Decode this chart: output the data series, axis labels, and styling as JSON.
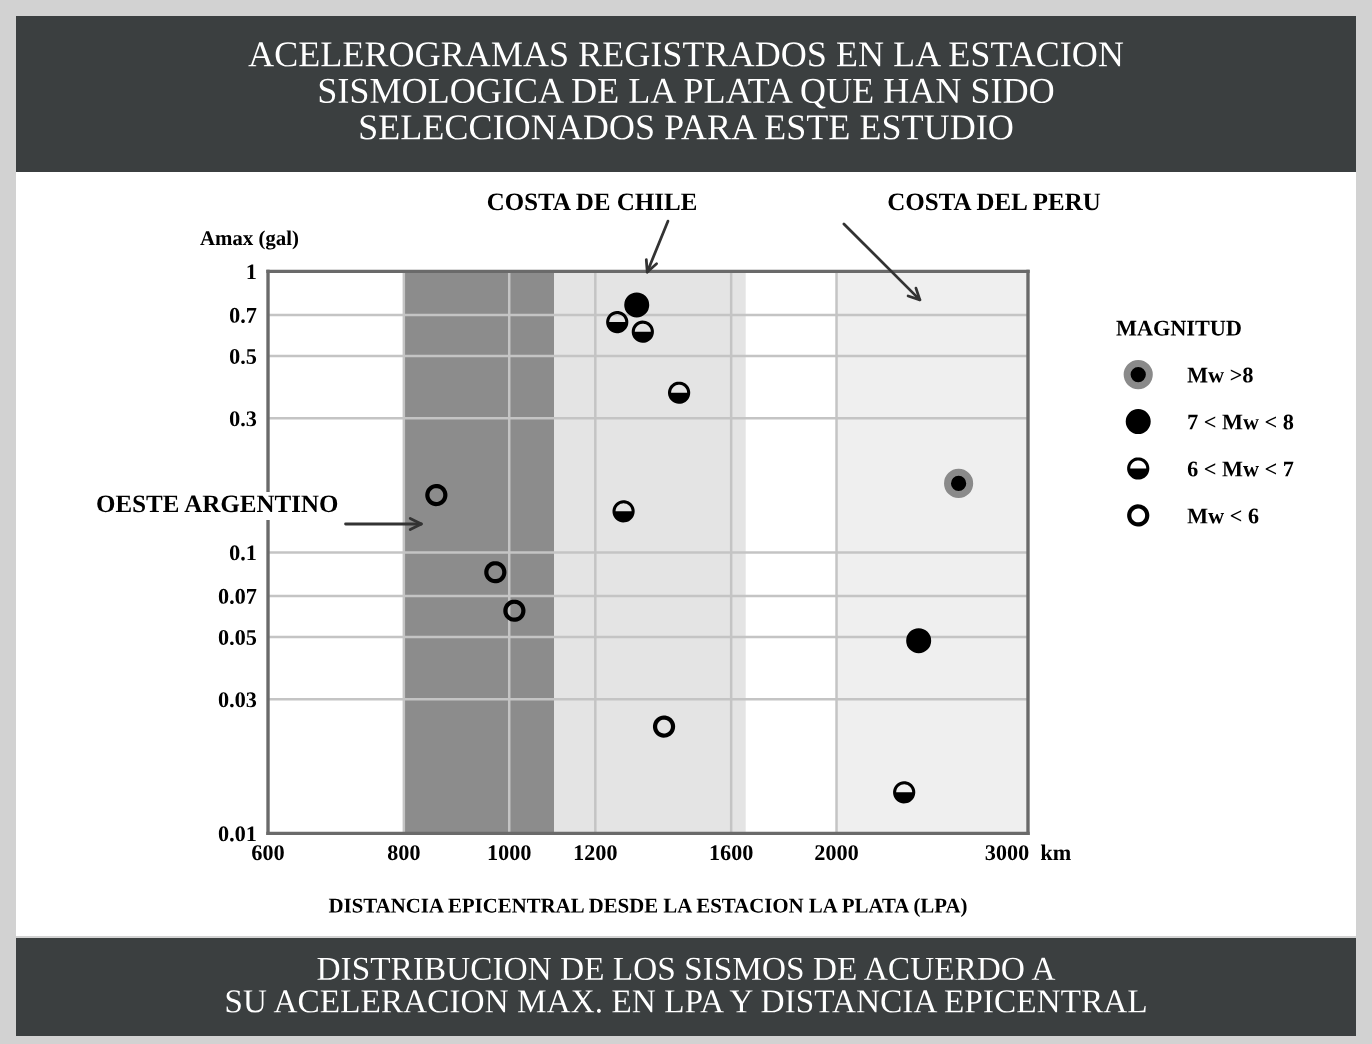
{
  "chart_data": {
    "type": "scatter",
    "title": "ACELEROGRAMAS REGISTRADOS EN LA ESTACION\nSISMOLOGICA DE LA PLATA QUE HAN SIDO\nSELECCIONADOS PARA ESTE ESTUDIO",
    "xlabel": "DISTANCIA EPICENTRAL DESDE LA ESTACION LA PLATA (LPA)",
    "ylabel": "Amax (gal)",
    "legend_title": "MAGNITUD",
    "log": "xy",
    "xlim": [
      600,
      3000
    ],
    "xticks": [
      600,
      800,
      1000,
      1200,
      1600,
      2000,
      {
        "value": 3000,
        "label": "3000  km"
      }
    ],
    "ylim": [
      0.01,
      1
    ],
    "yticks": [
      0.01,
      0.03,
      0.05,
      0.07,
      0.1,
      0.3,
      0.5,
      0.7,
      1
    ],
    "grid": true,
    "legend": "right",
    "marker": "circle",
    "series": [
      {
        "name": "Mw >8",
        "color": "#000000",
        "x": [
          2590
        ],
        "values": [
          0.176
        ]
      },
      {
        "name": "7 < Mw < 8",
        "color": "#000000",
        "x": [
          1310,
          2380
        ],
        "values": [
          0.76,
          0.0485
        ]
      },
      {
        "name": "6 < Mw < 7",
        "color": "#000000",
        "x": [
          1257,
          1327,
          1433,
          1274,
          2308
        ],
        "values": [
          0.66,
          0.61,
          0.37,
          0.14,
          0.014
        ]
      },
      {
        "name": "Mw < 6",
        "color": "#000000",
        "x": [
          857,
          971,
          1011,
          1388
        ],
        "values": [
          0.16,
          0.085,
          0.062,
          0.024
        ]
      }
    ],
    "bands": [
      {
        "axis": "x",
        "from": 800,
        "to": 1100,
        "color": "#8c8c8c"
      },
      {
        "axis": "x",
        "from": 1100,
        "to": 1650,
        "color": "#e4e4e4"
      },
      {
        "axis": "x",
        "from": 2000,
        "to": 3000,
        "color": "#efefef"
      }
    ],
    "annotations": [
      "COSTA DE CHILE",
      "COSTA DEL PERU",
      "OESTE ARGENTINO",
      "DISTRIBUCION DE LOS SISMOS DE ACUERDO A\nSU ACELERACION MAX. EN LPA Y DISTANCIA EPICENTRAL"
    ]
  }
}
